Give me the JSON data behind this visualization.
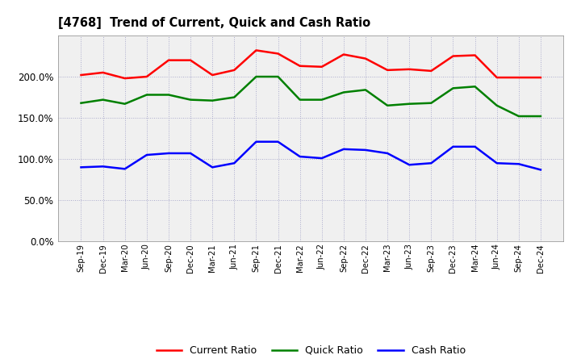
{
  "title": "[4768]  Trend of Current, Quick and Cash Ratio",
  "x_labels": [
    "Sep-19",
    "Dec-19",
    "Mar-20",
    "Jun-20",
    "Sep-20",
    "Dec-20",
    "Mar-21",
    "Jun-21",
    "Sep-21",
    "Dec-21",
    "Mar-22",
    "Jun-22",
    "Sep-22",
    "Dec-22",
    "Mar-23",
    "Jun-23",
    "Sep-23",
    "Dec-23",
    "Mar-24",
    "Jun-24",
    "Sep-24",
    "Dec-24"
  ],
  "current_ratio": [
    202,
    205,
    198,
    200,
    220,
    220,
    202,
    208,
    232,
    228,
    213,
    212,
    227,
    222,
    208,
    209,
    207,
    225,
    226,
    199,
    199,
    199
  ],
  "quick_ratio": [
    168,
    172,
    167,
    178,
    178,
    172,
    171,
    175,
    200,
    200,
    172,
    172,
    181,
    184,
    165,
    167,
    168,
    186,
    188,
    165,
    152,
    152
  ],
  "cash_ratio": [
    90,
    91,
    88,
    105,
    107,
    107,
    90,
    95,
    121,
    121,
    103,
    101,
    112,
    111,
    107,
    93,
    95,
    115,
    115,
    95,
    94,
    87
  ],
  "current_color": "#FF0000",
  "quick_color": "#008000",
  "cash_color": "#0000FF",
  "ylim": [
    0,
    250
  ],
  "yticks": [
    0,
    50,
    100,
    150,
    200
  ],
  "ytick_labels": [
    "0.0%",
    "50.0%",
    "100.0%",
    "150.0%",
    "200.0%"
  ],
  "bg_color": "#ffffff",
  "plot_bg_color": "#f0f0f0",
  "grid_color": "#aaaacc",
  "legend_entries": [
    "Current Ratio",
    "Quick Ratio",
    "Cash Ratio"
  ]
}
